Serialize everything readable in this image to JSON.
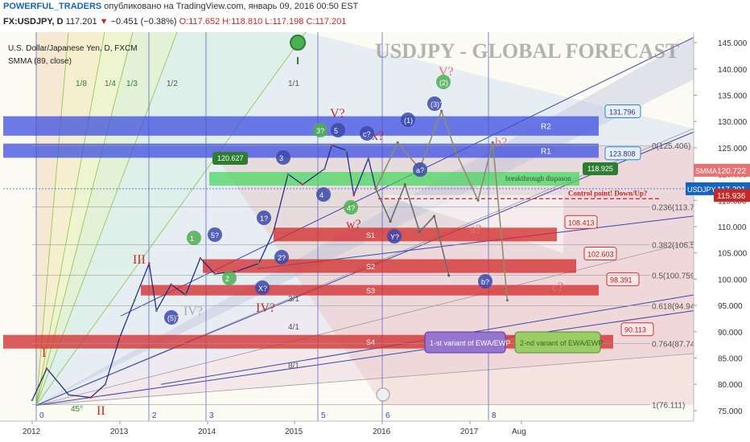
{
  "header": {
    "author": "POWERFUL_TRADERS",
    "published": "опубликовано на TradingView.com, январь 09, 2016 00:50 EST",
    "symbol": "FX:USDJPY, D",
    "last": "117.201",
    "change": "−0.451 (−0.38%)",
    "ohlc": {
      "o": "O:117.652",
      "h": "H:118.810",
      "l": "L:117.198",
      "c": "C:117.201"
    },
    "instrument": "U.S. Dollar/Japanese Yen, D, FXCM",
    "indicator": "SMMA (89, close)"
  },
  "watermark": "USDJPY - GLOBAL FORECAST",
  "colors": {
    "up": "#2e7d32",
    "down": "#c62828",
    "resistance": "#3f51b5",
    "zone": "#d32f2f",
    "support": "#4caf50",
    "accent": "#1e88e5"
  },
  "chart_data": {
    "type": "line",
    "title": "USDJPY - GLOBAL FORECAST",
    "xlabel": "",
    "ylabel": "",
    "x_ticks": [
      "2012",
      "2013",
      "2014",
      "2015",
      "2016",
      "2017",
      "Aug"
    ],
    "y_ticks": [
      "145.000",
      "140.000",
      "135.000",
      "130.000",
      "125.000",
      "120.000",
      "115.000",
      "110.000",
      "105.000",
      "100.000",
      "95.000",
      "90.000",
      "85.000",
      "80.000",
      "75.000"
    ],
    "ylim": [
      73,
      147
    ],
    "price_tags": [
      {
        "value": 120.722,
        "text": "120.722",
        "label": "SMMA",
        "color": "#e57373"
      },
      {
        "value": 117.201,
        "text": "117.201",
        "label": "USDJPY",
        "color": "#1565c0"
      },
      {
        "value": 115.936,
        "text": "115.936",
        "label": "",
        "color": "#c62828"
      }
    ],
    "fib_levels": [
      {
        "label": "0(125.406)",
        "value": 125.406
      },
      {
        "label": "0.236(113.772)",
        "value": 113.772
      },
      {
        "label": "0.382(106.575)",
        "value": 106.575
      },
      {
        "label": "0.5(100.759)",
        "value": 100.759
      },
      {
        "label": "0.618(94.942)",
        "value": 94.942
      },
      {
        "label": "0.764(87.745)",
        "value": 87.745
      },
      {
        "label": "1(76.111)",
        "value": 76.111
      }
    ],
    "resistance_boxes": [
      {
        "label": "R2",
        "price": "131.796",
        "y1": 131.0,
        "y2": 127.3
      },
      {
        "label": "R1",
        "price": "123.808",
        "y1": 125.8,
        "y2": 123.1
      }
    ],
    "support_boxes": [
      {
        "label": "S1",
        "price": "108.413",
        "y1": 109.8,
        "y2": 107.2
      },
      {
        "label": "S2",
        "price": "102.603",
        "y1": 103.8,
        "y2": 101.2
      },
      {
        "label": "S3",
        "price": "98.391",
        "y1": 98.9,
        "y2": 96.9
      },
      {
        "label": "S4",
        "price": "90.113",
        "y1": 89.4,
        "y2": 86.8
      }
    ],
    "breakthrough_zone": {
      "label": "breakthrough dispason",
      "left_price": "120.627",
      "right_price": "118.925",
      "y1": 120.4,
      "y2": 117.8
    },
    "control_point": {
      "label": "Control point! Down/Up?",
      "value": 115.3
    },
    "gann_fan": [
      "1/8",
      "1/4",
      "1/3",
      "1/2",
      "1/1",
      "3/1",
      "4/1",
      "8/1"
    ],
    "waves_major": [
      "I",
      "II",
      "III",
      "IV?",
      "V?",
      "IV?",
      "V?",
      "a?",
      "b?",
      "c?",
      "x?",
      "w?"
    ],
    "waves_minor": [
      "1",
      "2",
      "3",
      "4",
      "5",
      "1?",
      "2?",
      "3?",
      "4?",
      "5?",
      "X?",
      "Y?",
      "a?",
      "b?",
      "c?",
      "(1)",
      "(3)?",
      "(5)?",
      "(2)"
    ],
    "vertical_labels": [
      "0",
      "2",
      "3",
      "5",
      "6",
      "8"
    ],
    "gann_angle": "45°",
    "annotations": [
      "1-st variant of EWA/EWP",
      "2-nd variant of EWA/EWP"
    ],
    "series": [
      {
        "x": [
          "2012-01",
          "2012-03",
          "2012-06",
          "2012-09",
          "2012-11",
          "2013-01",
          "2013-03",
          "2013-05",
          "2013-06",
          "2013-08",
          "2013-10",
          "2013-12",
          "2014-02",
          "2014-05",
          "2014-08",
          "2014-10",
          "2014-12",
          "2015-02",
          "2015-05",
          "2015-06",
          "2015-08",
          "2015-09",
          "2015-11",
          "2015-12"
        ],
        "values": [
          77,
          83,
          78,
          77.5,
          80,
          89,
          96,
          103,
          94,
          99,
          97,
          104,
          101,
          101.5,
          103,
          109,
          120,
          118,
          121,
          125.5,
          124.5,
          116,
          123,
          117.2
        ]
      }
    ],
    "forecast_1": {
      "x": [
        "2015-12",
        "2016-02",
        "2016-04",
        "2016-06",
        "2016-08",
        "2016-10"
      ],
      "values": [
        117.2,
        111,
        118,
        109,
        112,
        100.7
      ]
    },
    "forecast_2": {
      "x": [
        "2015-12",
        "2016-03",
        "2016-06",
        "2016-09",
        "2016-11",
        "2017-02",
        "2017-04",
        "2017-06"
      ],
      "values": [
        117.2,
        126,
        121,
        132,
        124,
        115,
        126,
        96
      ]
    }
  }
}
